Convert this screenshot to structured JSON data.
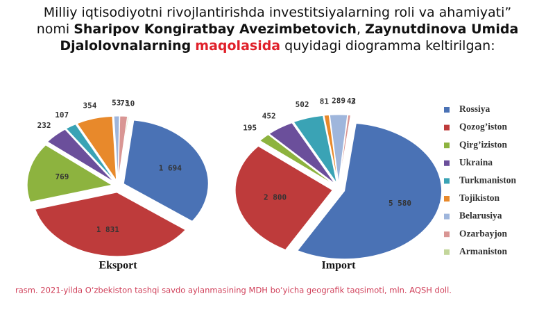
{
  "header": {
    "parts": [
      {
        "text": "Milliy iqtisodiyotni rivojlantirishda investitsiyalarning roli va ahamiyati” nomi ",
        "style": "normal"
      },
      {
        "text": "Sharipov Kongiratbay Avezimbetovich",
        "style": "bold"
      },
      {
        "text": ", ",
        "style": "normal"
      },
      {
        "text": "Zaynutdinova Umida Djalolovnalarning",
        "style": "bold"
      },
      {
        "text": " ",
        "style": "normal"
      },
      {
        "text": "maqolasida",
        "style": "red"
      },
      {
        "text": " quyidagi diogramma keltirilgan:",
        "style": "normal"
      }
    ]
  },
  "caption": "rasm. 2021-yilda O‘zbekiston tashqi savdo aylanmasining MDH bo‘yicha geografik taqsimoti, mln. AQSH doll.",
  "chart_data": [
    {
      "type": "pie",
      "title": "Eksport",
      "categories": [
        "Rossiya",
        "Qozog’iston",
        "Qirg’iziston",
        "Ukraina",
        "Turkmaniston",
        "Tojikiston",
        "Belarusiya",
        "Ozarbayjon",
        "Armaniston"
      ],
      "colors": [
        "#4a72b5",
        "#be3b3b",
        "#8db33f",
        "#6b4f9b",
        "#3aa3b5",
        "#e8892b",
        "#9fb6dc",
        "#d99694",
        "#c3d69b"
      ],
      "values": [
        1694,
        1831,
        769,
        232,
        107,
        354,
        53,
        73,
        10
      ],
      "value_labels": [
        "1 694",
        "1 831",
        "769",
        "232",
        "107",
        "354",
        "53",
        "73",
        "10"
      ]
    },
    {
      "type": "pie",
      "title": "Import",
      "values": [
        5580,
        2800,
        195,
        452,
        502,
        81,
        289,
        42,
        3
      ],
      "value_labels": [
        "5 580",
        "2 800",
        "195",
        "452",
        "502",
        "81",
        "289",
        "42",
        "3"
      ]
    }
  ]
}
